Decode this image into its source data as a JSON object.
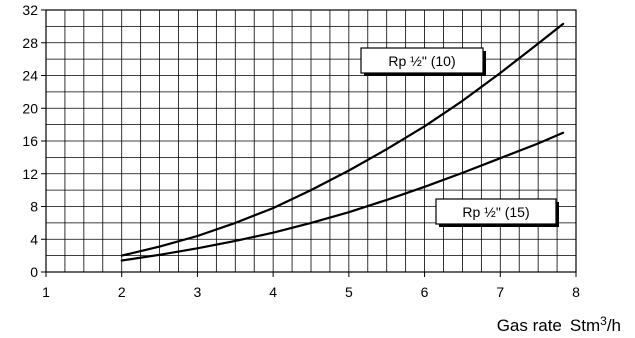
{
  "chart_data": {
    "type": "line",
    "title": "",
    "xlabel": "Gas rate",
    "xlabel_unit_main": "Stm",
    "xlabel_unit_sup": "3",
    "xlabel_unit_tail": "/h",
    "ylabel": "",
    "xlim": [
      1,
      8
    ],
    "ylim": [
      0,
      32
    ],
    "x_ticks": [
      1,
      2,
      3,
      4,
      5,
      6,
      7,
      8
    ],
    "y_ticks": [
      0,
      4,
      8,
      12,
      16,
      20,
      24,
      28,
      32
    ],
    "grid": true,
    "series": [
      {
        "name": "Rp ½\" (10)",
        "x": [
          2.0,
          2.5,
          3.0,
          3.5,
          4.0,
          4.5,
          5.0,
          5.5,
          6.0,
          6.5,
          7.0,
          7.5,
          7.83
        ],
        "y": [
          2.0,
          3.1,
          4.4,
          6.0,
          7.8,
          10.0,
          12.4,
          15.0,
          17.8,
          20.9,
          24.3,
          27.9,
          30.3
        ]
      },
      {
        "name": "Rp ½\" (15)",
        "x": [
          2.0,
          2.5,
          3.0,
          3.5,
          4.0,
          4.5,
          5.0,
          5.5,
          6.0,
          6.5,
          7.0,
          7.5,
          7.83
        ],
        "y": [
          1.4,
          2.1,
          2.9,
          3.8,
          4.8,
          6.0,
          7.3,
          8.8,
          10.4,
          12.1,
          13.9,
          15.7,
          17.0
        ]
      }
    ],
    "legend": "inline-boxes"
  }
}
